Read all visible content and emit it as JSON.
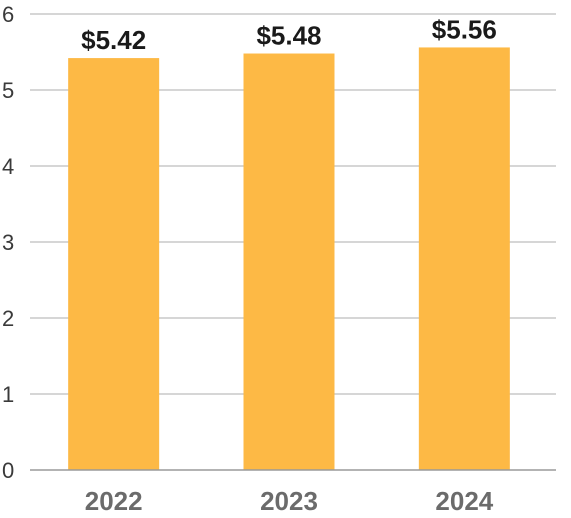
{
  "chart_data": {
    "type": "bar",
    "title": "",
    "xlabel": "",
    "ylabel": "",
    "categories": [
      "2022",
      "2023",
      "2024"
    ],
    "values": [
      5.42,
      5.48,
      5.56
    ],
    "data_labels": [
      "$5.42",
      "$5.48",
      "$5.56"
    ],
    "ylim": [
      0,
      6
    ],
    "yticks": [
      "0",
      "1",
      "2",
      "3",
      "4",
      "5",
      "6"
    ],
    "grid": true,
    "bar_color": "#FDB945"
  }
}
